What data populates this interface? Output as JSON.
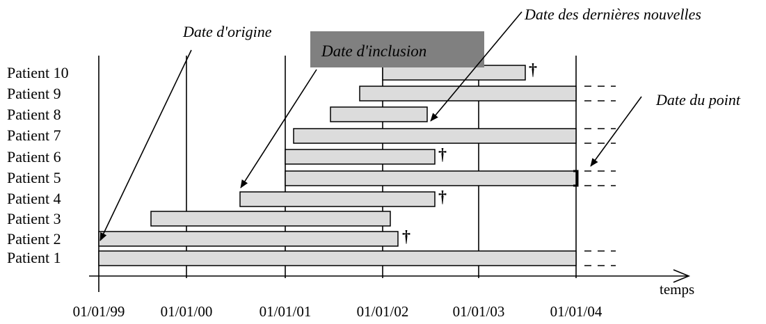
{
  "diagram": {
    "x_axis": {
      "label": "temps",
      "ticks": [
        "01/01/99",
        "01/01/00",
        "01/01/01",
        "01/01/02",
        "01/01/03",
        "01/01/04"
      ]
    },
    "annotations": {
      "origin_date": "Date d'origine",
      "inclusion_date": "Date d'inclusion",
      "last_news_date": "Date des dernières nouvelles",
      "point_date": "Date du point"
    },
    "death_marker": "†",
    "patients": [
      {
        "label": "Patient 10",
        "start": "01/01/02",
        "end": "07/2003",
        "death": true,
        "censored": false
      },
      {
        "label": "Patient 9",
        "start": "10/2001",
        "end": "01/01/04",
        "death": false,
        "censored": true
      },
      {
        "label": "Patient 8",
        "start": "06/2001",
        "end": "06/2002",
        "death": false,
        "censored": false
      },
      {
        "label": "Patient 7",
        "start": "01/2001",
        "end": "01/01/04",
        "death": false,
        "censored": true
      },
      {
        "label": "Patient 6",
        "start": "01/01/01",
        "end": "07/2002",
        "death": true,
        "censored": false
      },
      {
        "label": "Patient 5",
        "start": "01/01/01",
        "end": "01/01/04",
        "death": false,
        "censored": true
      },
      {
        "label": "Patient 4",
        "start": "07/2000",
        "end": "07/2002",
        "death": true,
        "censored": false
      },
      {
        "label": "Patient 3",
        "start": "07/1999",
        "end": "01/2002",
        "death": false,
        "censored": false
      },
      {
        "label": "Patient 2",
        "start": "01/01/99",
        "end": "02/2002",
        "death": true,
        "censored": false
      },
      {
        "label": "Patient 1",
        "start": "01/01/99",
        "end": "01/01/04",
        "death": false,
        "censored": true
      }
    ]
  }
}
